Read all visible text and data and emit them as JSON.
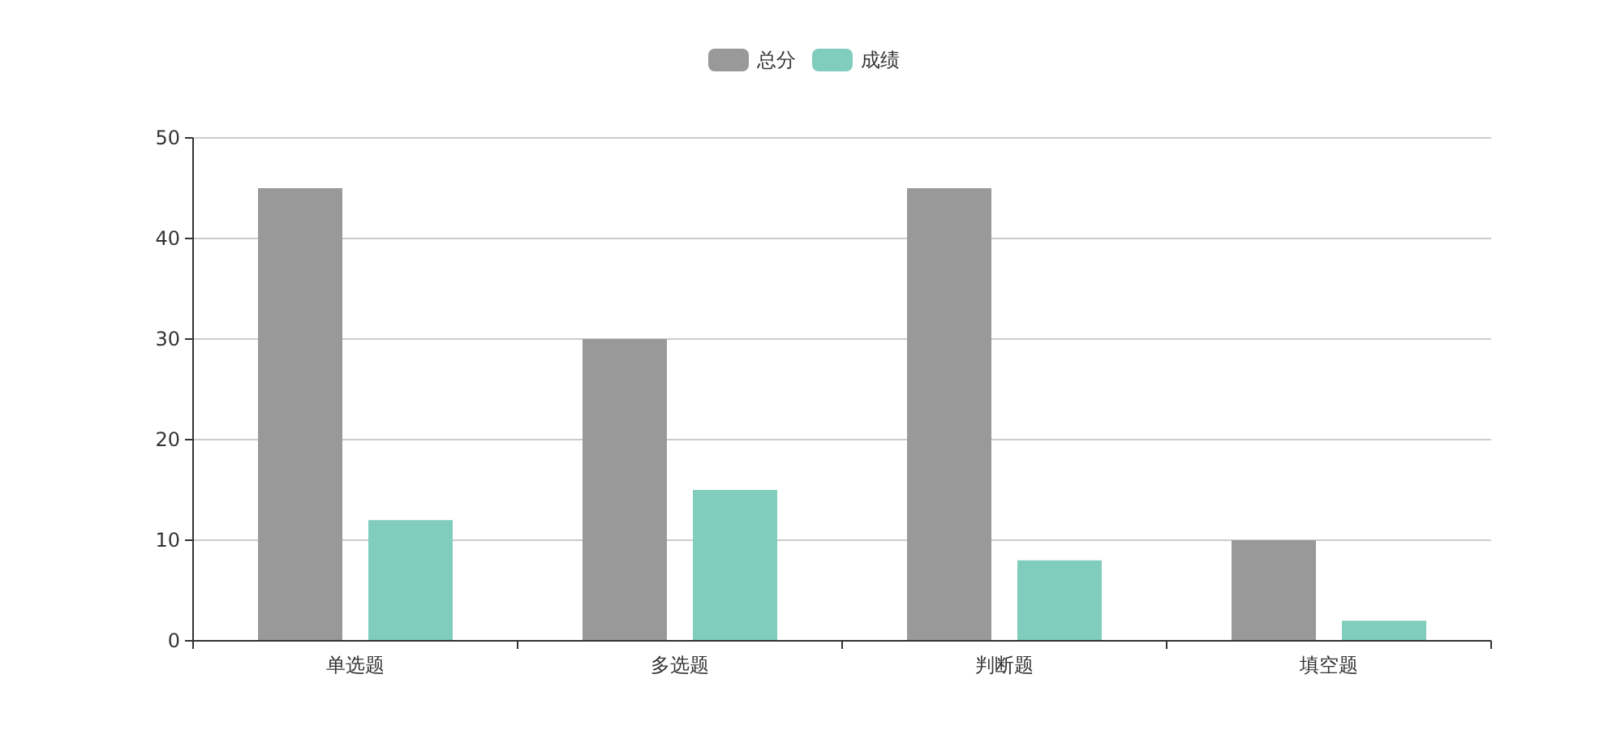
{
  "chart_data": {
    "type": "bar",
    "categories": [
      "单选题",
      "多选题",
      "判断题",
      "填空题"
    ],
    "series": [
      {
        "name": "总分",
        "color": "#999999",
        "values": [
          45,
          30,
          45,
          10
        ]
      },
      {
        "name": "成绩",
        "color": "#81cdbd",
        "values": [
          12,
          15,
          8,
          2
        ]
      }
    ],
    "ylim": [
      0,
      50
    ],
    "yticks": [
      0,
      10,
      20,
      30,
      40,
      50
    ],
    "grid": "y",
    "legend": "top"
  }
}
